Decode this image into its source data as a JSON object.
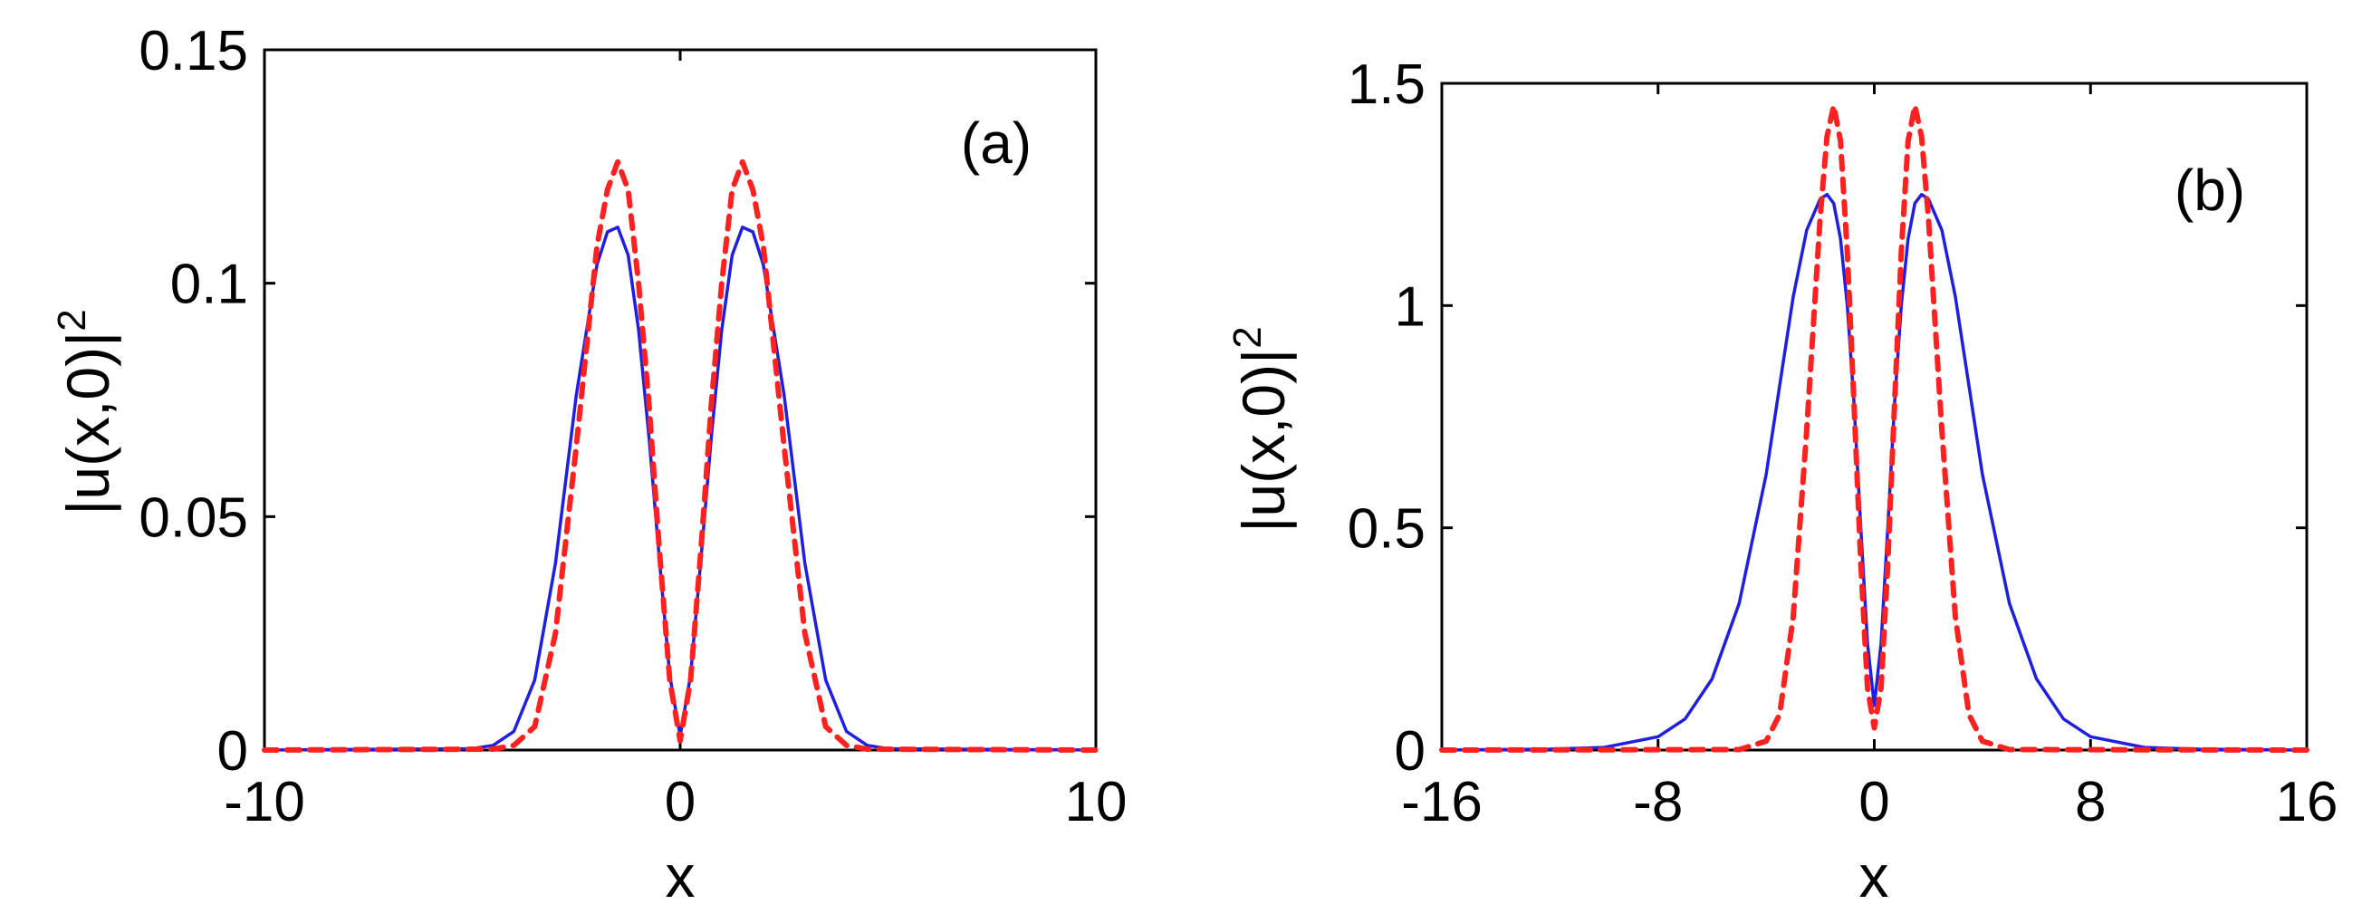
{
  "figure": {
    "panels": [
      "a",
      "b"
    ]
  },
  "chart_data": [
    {
      "type": "line",
      "panel_label": "(a)",
      "xlabel": "x",
      "ylabel": "|u(x,0)|",
      "ylabel_exponent": "2",
      "xlim": [
        -10,
        10
      ],
      "ylim": [
        0,
        0.15
      ],
      "x_ticks": [
        -10,
        0,
        10
      ],
      "x_tick_labels": [
        "-10",
        "0",
        "10"
      ],
      "y_ticks": [
        0,
        0.05,
        0.1,
        0.15
      ],
      "y_tick_labels": [
        "0",
        "0.05",
        "0.1",
        "0.15"
      ],
      "grid": false,
      "series": [
        {
          "name": "solid",
          "color": "#1f1fe0",
          "style": "solid",
          "x": [
            -10,
            -5,
            -4.5,
            -4,
            -3.5,
            -3,
            -2.5,
            -2,
            -1.75,
            -1.5,
            -1.25,
            -1,
            -0.75,
            -0.5,
            -0.25,
            0,
            0.25,
            0.5,
            0.75,
            1,
            1.25,
            1.5,
            1.75,
            2,
            2.5,
            3,
            3.5,
            4,
            4.5,
            5,
            10
          ],
          "y": [
            0,
            0.0003,
            0.001,
            0.004,
            0.015,
            0.04,
            0.076,
            0.104,
            0.111,
            0.112,
            0.106,
            0.09,
            0.067,
            0.041,
            0.016,
            0.003,
            0.016,
            0.041,
            0.067,
            0.09,
            0.106,
            0.112,
            0.111,
            0.104,
            0.076,
            0.04,
            0.015,
            0.004,
            0.001,
            0.0003,
            0
          ]
        },
        {
          "name": "dashed",
          "color": "#ff2020",
          "style": "dashed",
          "x": [
            -10,
            -4.5,
            -4,
            -3.5,
            -3,
            -2.5,
            -2,
            -1.75,
            -1.5,
            -1.25,
            -1,
            -0.75,
            -0.5,
            -0.25,
            0,
            0.25,
            0.5,
            0.75,
            1,
            1.25,
            1.5,
            1.75,
            2,
            2.5,
            3,
            3.5,
            4,
            4.5,
            10
          ],
          "y": [
            0,
            0.0002,
            0.001,
            0.005,
            0.025,
            0.065,
            0.108,
            0.12,
            0.126,
            0.12,
            0.1,
            0.074,
            0.043,
            0.015,
            0.002,
            0.015,
            0.043,
            0.074,
            0.1,
            0.12,
            0.126,
            0.12,
            0.108,
            0.065,
            0.025,
            0.005,
            0.001,
            0.0002,
            0
          ]
        }
      ]
    },
    {
      "type": "line",
      "panel_label": "(b)",
      "xlabel": "x",
      "ylabel": "|u(x,0)|",
      "ylabel_exponent": "2",
      "xlim": [
        -16,
        16
      ],
      "ylim": [
        0,
        1.5
      ],
      "x_ticks": [
        -16,
        -8,
        0,
        8,
        16
      ],
      "x_tick_labels": [
        "-16",
        "-8",
        "0",
        "8",
        "16"
      ],
      "y_ticks": [
        0,
        0.5,
        1,
        1.5
      ],
      "y_tick_labels": [
        "0",
        "0.5",
        "1",
        "1.5"
      ],
      "grid": false,
      "series": [
        {
          "name": "solid",
          "color": "#1f1fe0",
          "style": "solid",
          "x": [
            -16,
            -12,
            -10,
            -8,
            -7,
            -6,
            -5,
            -4,
            -3.5,
            -3,
            -2.5,
            -2,
            -1.75,
            -1.5,
            -1.25,
            -1,
            -0.75,
            -0.5,
            -0.25,
            0,
            0.25,
            0.5,
            0.75,
            1,
            1.25,
            1.5,
            1.75,
            2,
            2.5,
            3,
            3.5,
            4,
            5,
            6,
            7,
            8,
            10,
            12,
            16
          ],
          "y": [
            0,
            0.002,
            0.006,
            0.03,
            0.07,
            0.16,
            0.33,
            0.62,
            0.82,
            1.02,
            1.17,
            1.24,
            1.25,
            1.23,
            1.15,
            1.0,
            0.78,
            0.5,
            0.24,
            0.1,
            0.24,
            0.5,
            0.78,
            1.0,
            1.15,
            1.23,
            1.25,
            1.24,
            1.17,
            1.02,
            0.82,
            0.62,
            0.33,
            0.16,
            0.07,
            0.03,
            0.006,
            0.002,
            0
          ]
        },
        {
          "name": "dashed",
          "color": "#ff2020",
          "style": "dashed",
          "x": [
            -16,
            -5,
            -4,
            -3.5,
            -3,
            -2.5,
            -2,
            -1.75,
            -1.5,
            -1.25,
            -1,
            -0.75,
            -0.5,
            -0.25,
            0,
            0.25,
            0.5,
            0.75,
            1,
            1.25,
            1.5,
            1.75,
            2,
            2.5,
            3,
            3.5,
            4,
            5,
            16
          ],
          "y": [
            0,
            0.001,
            0.02,
            0.08,
            0.3,
            0.72,
            1.2,
            1.38,
            1.45,
            1.37,
            1.12,
            0.78,
            0.42,
            0.14,
            0.05,
            0.14,
            0.42,
            0.78,
            1.12,
            1.37,
            1.45,
            1.38,
            1.2,
            0.72,
            0.3,
            0.08,
            0.02,
            0.001,
            0
          ]
        }
      ]
    }
  ]
}
